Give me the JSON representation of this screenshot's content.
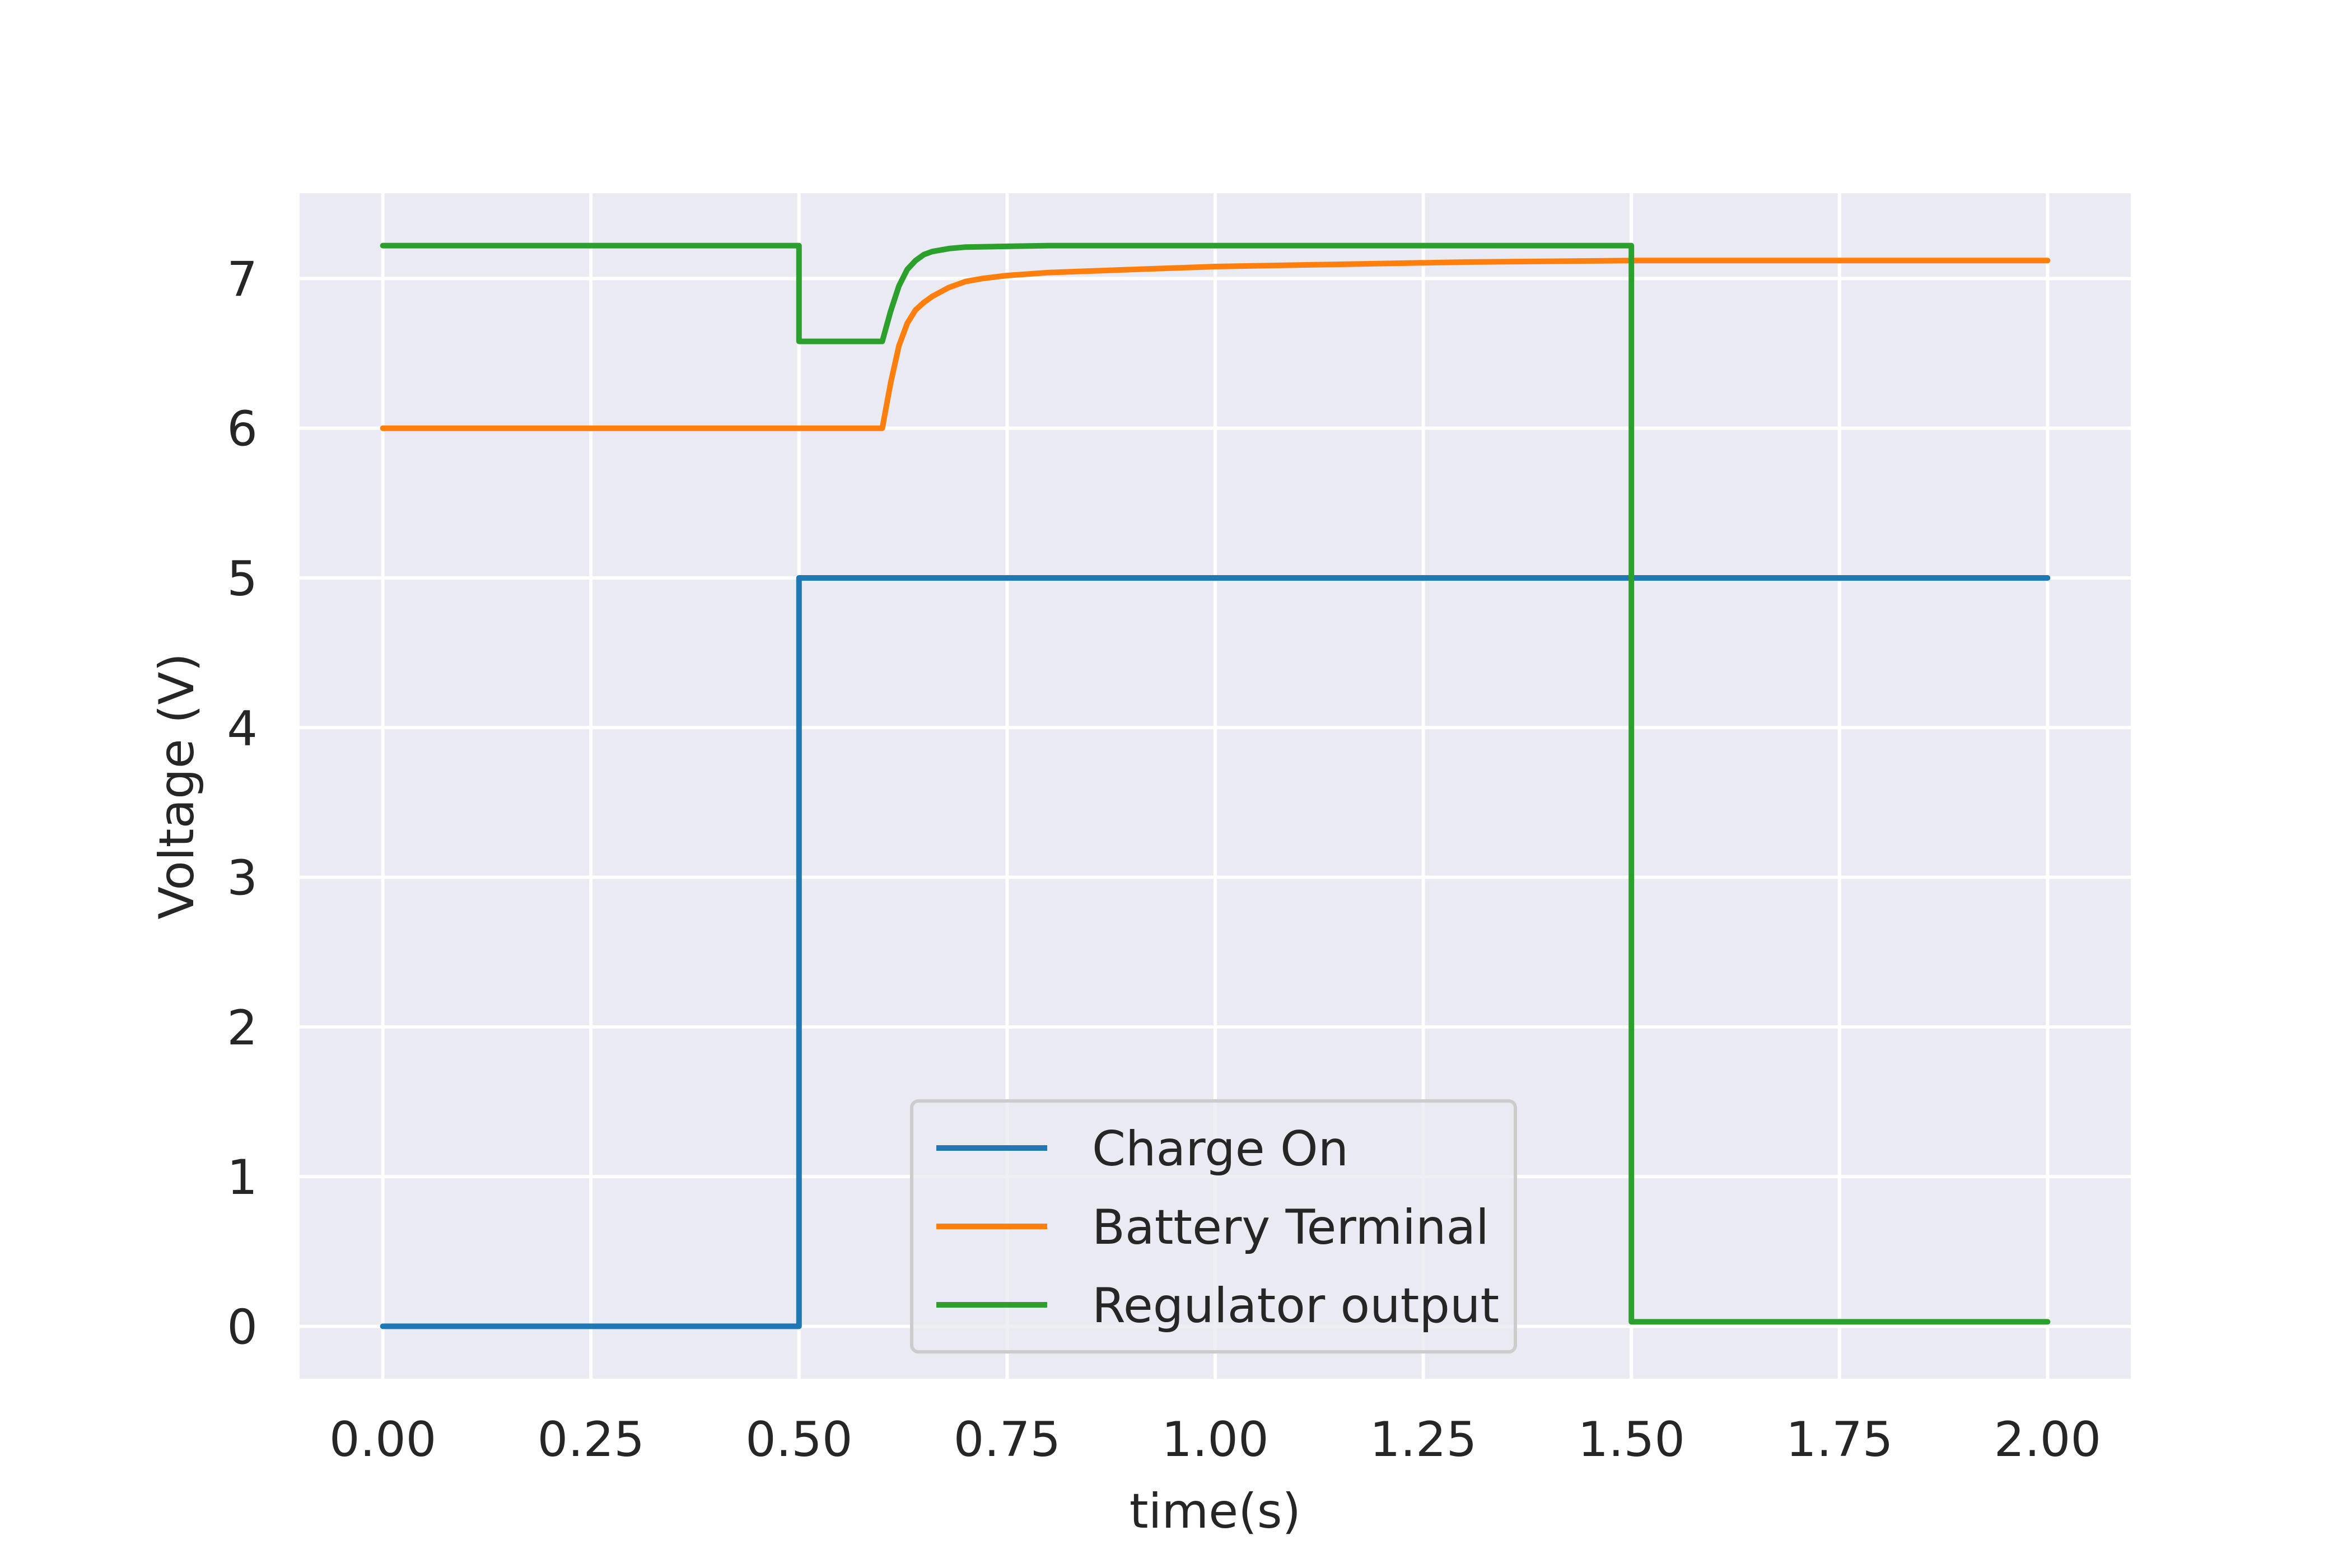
{
  "chart_data": {
    "type": "line",
    "title": "",
    "xlabel": "time(s)",
    "ylabel": "Voltage (V)",
    "xlim": [
      -0.1,
      2.1
    ],
    "ylim": [
      -0.35,
      7.57
    ],
    "x_ticks": [
      0.0,
      0.25,
      0.5,
      0.75,
      1.0,
      1.25,
      1.5,
      1.75,
      2.0
    ],
    "x_tick_labels": [
      "0.00",
      "0.25",
      "0.50",
      "0.75",
      "1.00",
      "1.25",
      "1.50",
      "1.75",
      "2.00"
    ],
    "y_ticks": [
      0,
      1,
      2,
      3,
      4,
      5,
      6,
      7
    ],
    "y_tick_labels": [
      "0",
      "1",
      "2",
      "3",
      "4",
      "5",
      "6",
      "7"
    ],
    "grid": true,
    "legend_position": "lower-center",
    "series": [
      {
        "name": "Charge On",
        "color": "#1f77b4",
        "x": [
          0.0,
          0.5,
          0.5,
          2.0
        ],
        "y": [
          0.0,
          0.0,
          5.0,
          5.0
        ]
      },
      {
        "name": "Battery Terminal",
        "color": "#ff7f0e",
        "x": [
          0.0,
          0.6,
          0.61,
          0.62,
          0.63,
          0.64,
          0.65,
          0.66,
          0.68,
          0.7,
          0.72,
          0.75,
          0.8,
          0.85,
          0.9,
          1.0,
          1.1,
          1.2,
          1.3,
          1.4,
          1.5,
          1.6,
          1.8,
          2.0
        ],
        "y": [
          6.0,
          6.0,
          6.3,
          6.55,
          6.7,
          6.79,
          6.84,
          6.88,
          6.94,
          6.98,
          7.0,
          7.02,
          7.04,
          7.05,
          7.06,
          7.08,
          7.09,
          7.1,
          7.11,
          7.115,
          7.12,
          7.12,
          7.12,
          7.12
        ]
      },
      {
        "name": "Regulator output",
        "color": "#2ca02c",
        "x": [
          0.0,
          0.5,
          0.5,
          0.6,
          0.61,
          0.62,
          0.63,
          0.64,
          0.65,
          0.66,
          0.68,
          0.7,
          0.75,
          0.8,
          1.0,
          1.5,
          1.5,
          2.0
        ],
        "y": [
          7.22,
          7.22,
          6.58,
          6.58,
          6.78,
          6.95,
          7.06,
          7.12,
          7.16,
          7.18,
          7.2,
          7.21,
          7.215,
          7.22,
          7.22,
          7.22,
          0.03,
          0.03
        ]
      }
    ]
  }
}
